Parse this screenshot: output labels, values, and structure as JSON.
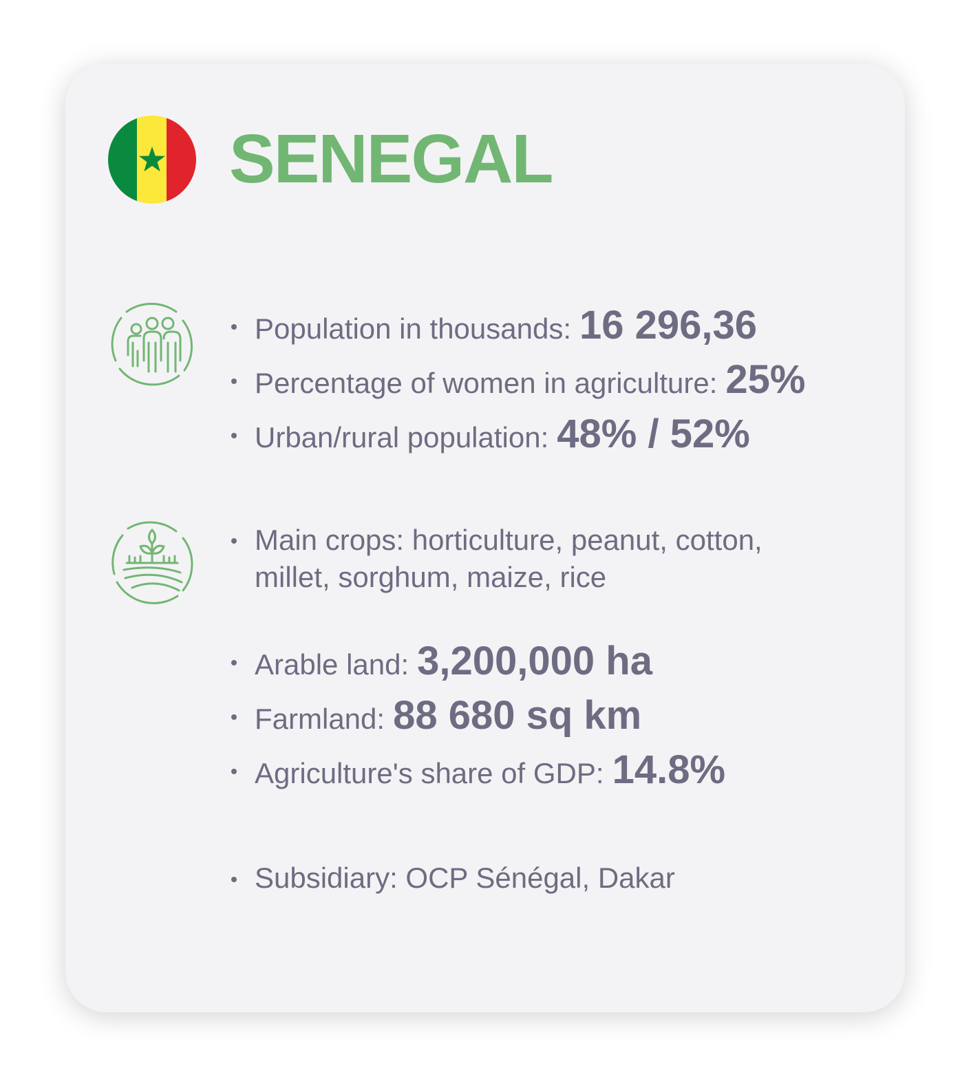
{
  "country": {
    "name": "SENEGAL",
    "title_color": "#72b673",
    "flag_colors": {
      "green": "#0a8a3f",
      "yellow": "#fbe83a",
      "red": "#e1232b",
      "star": "#0a8a3f"
    }
  },
  "icons": {
    "people": "people-group-icon",
    "crops": "crops-field-icon",
    "color": "#72b673"
  },
  "demographics": [
    {
      "label": "Population in thousands:",
      "value": "16 296,36"
    },
    {
      "label": "Percentage of women in agriculture:",
      "value": "25%"
    },
    {
      "label": "Urban/rural population:",
      "value": "48% / 52%"
    }
  ],
  "main_crops": "Main crops: horticulture, peanut, cotton, millet, sorghum, maize, rice",
  "land": [
    {
      "label": "Arable land:",
      "value": "3,200,000 ha"
    },
    {
      "label": "Farmland:",
      "value": "88 680 sq km"
    },
    {
      "label": "Agriculture's share of GDP:",
      "value": "14.8%"
    }
  ],
  "subsidiary": "Subsidiary: OCP Sénégal, Dakar"
}
